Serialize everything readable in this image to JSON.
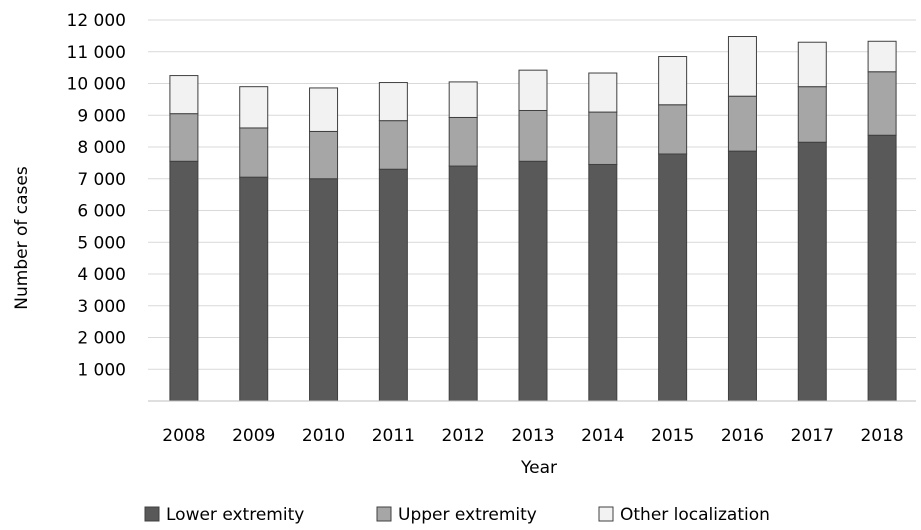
{
  "chart_data": {
    "type": "bar",
    "stacked": true,
    "categories": [
      "2008",
      "2009",
      "2010",
      "2011",
      "2012",
      "2013",
      "2014",
      "2015",
      "2016",
      "2017",
      "2018"
    ],
    "series": [
      {
        "name": "Lower extremity",
        "color": "#595959",
        "values": [
          7550,
          7050,
          7000,
          7300,
          7400,
          7550,
          7450,
          7780,
          7870,
          8150,
          8370
        ]
      },
      {
        "name": "Upper extremity",
        "color": "#a6a6a6",
        "values": [
          1500,
          1550,
          1490,
          1530,
          1530,
          1600,
          1650,
          1550,
          1730,
          1750,
          2000
        ]
      },
      {
        "name": "Other localization",
        "color": "#f2f2f2",
        "values": [
          1200,
          1300,
          1370,
          1200,
          1120,
          1270,
          1230,
          1520,
          1880,
          1400,
          960
        ]
      }
    ],
    "y_ticks": [
      "1 000",
      "2 000",
      "3 000",
      "4 000",
      "5 000",
      "6 000",
      "7 000",
      "8 000",
      "9 000",
      "10 000",
      "11 000",
      "12 000"
    ],
    "ylim": [
      0,
      12000
    ],
    "xlabel": "Year",
    "ylabel": "Number of cases",
    "grid": true,
    "legend": "bottom"
  }
}
